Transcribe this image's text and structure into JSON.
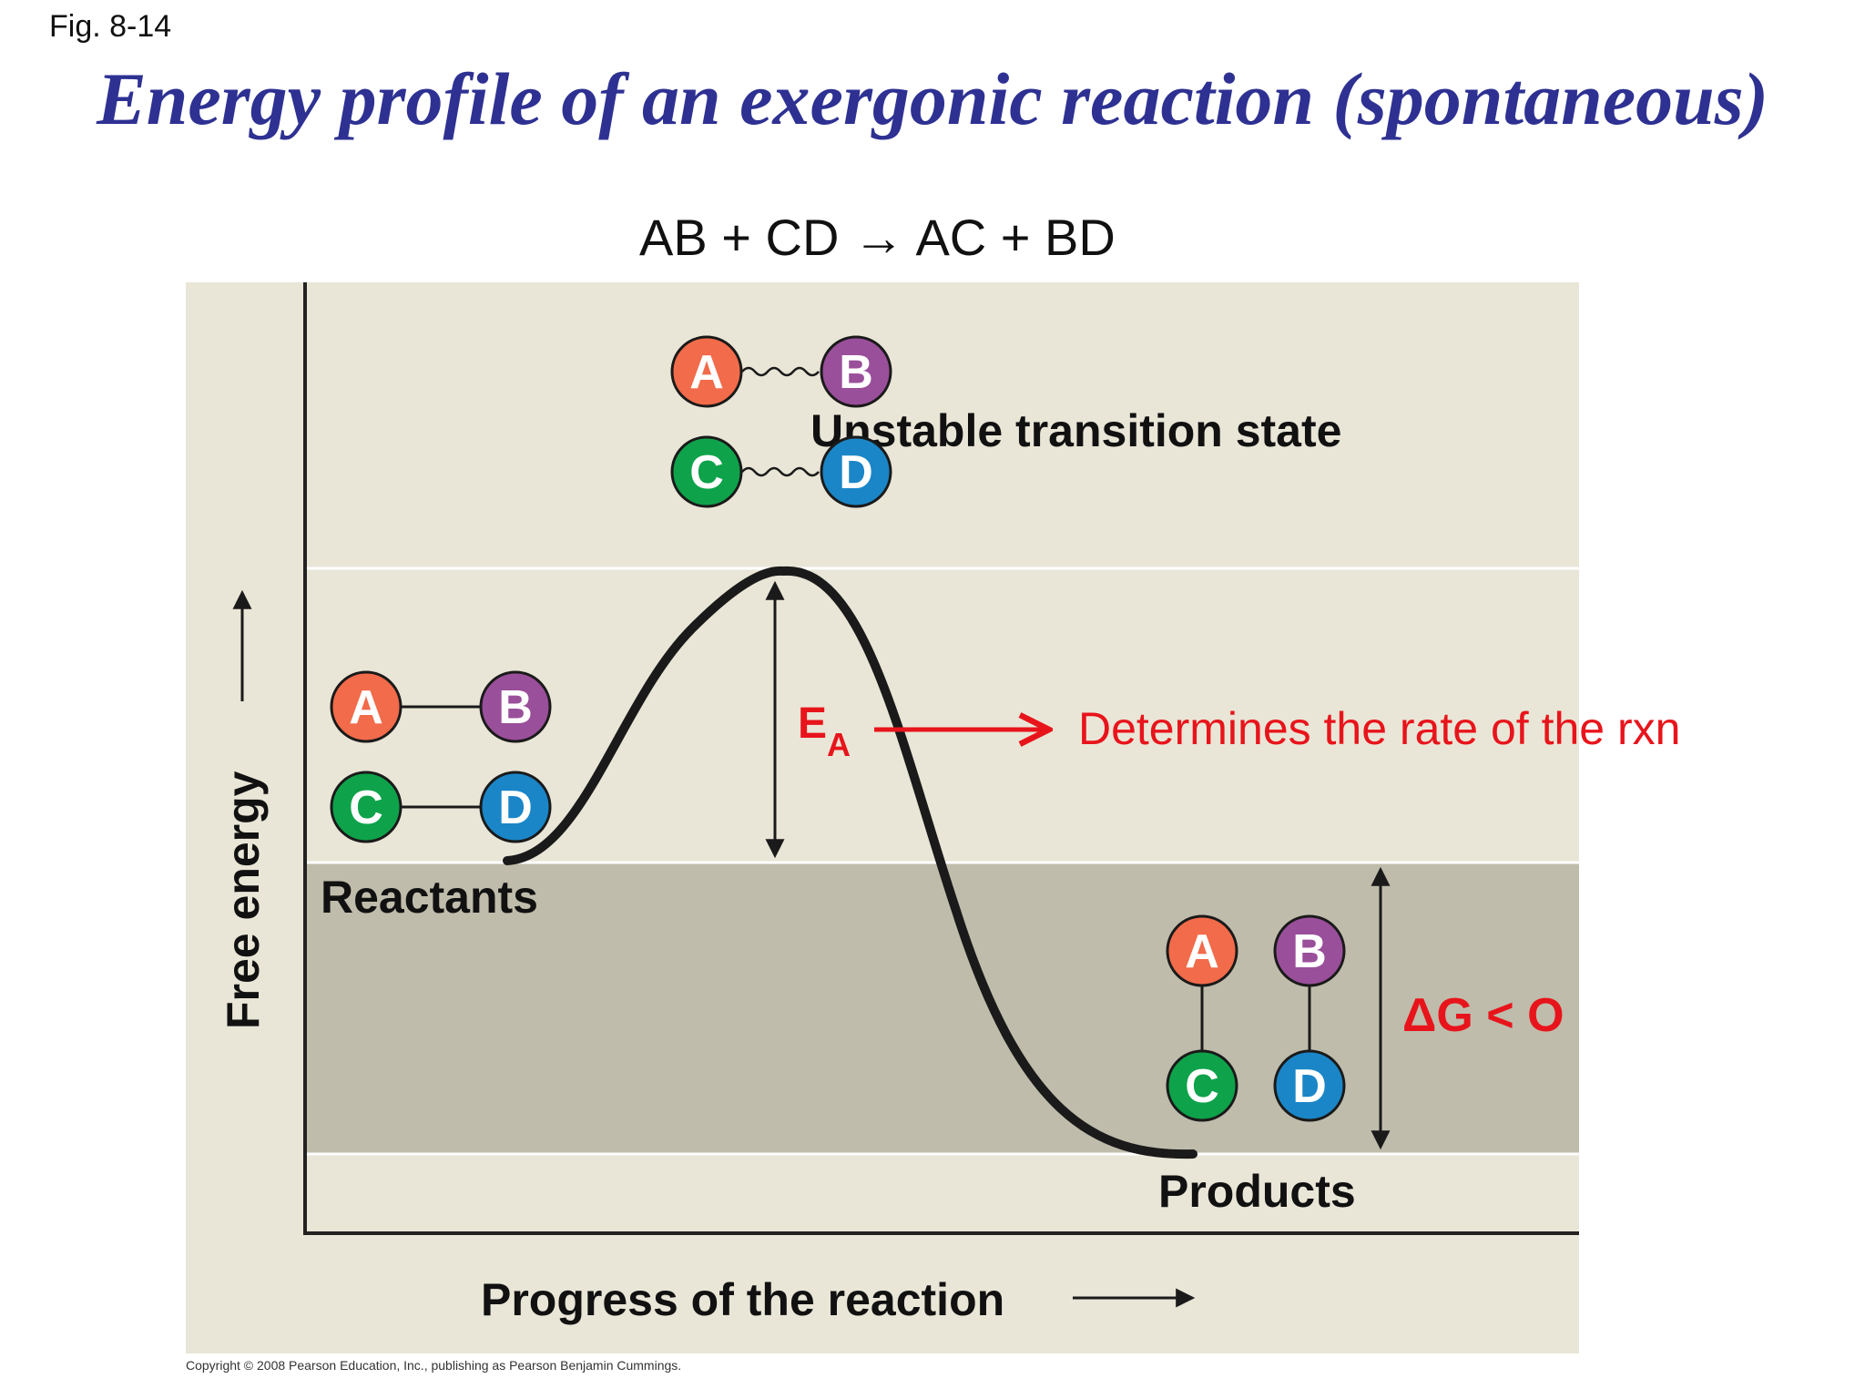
{
  "fig_label": "Fig. 8-14",
  "title": "Energy profile of an exergonic reaction (spontaneous)",
  "equation": {
    "left": "AB + CD",
    "arrow": "→",
    "right": "AC + BD"
  },
  "axes": {
    "y_label": "Free energy",
    "x_label": "Progress of the reaction"
  },
  "labels": {
    "transition_state": "Unstable transition state",
    "reactants": "Reactants",
    "products": "Products",
    "activation_energy": {
      "main": "E",
      "sub": "A"
    },
    "rate_note": "Determines the rate of the rxn",
    "delta_g": "ΔG < O"
  },
  "molecules": {
    "atoms": [
      "A",
      "B",
      "C",
      "D"
    ]
  },
  "colors": {
    "title": "#2e3192",
    "annotation_red": "#e8141b",
    "atom_A": "#f26b4a",
    "atom_B": "#9a4f9a",
    "atom_C": "#0ea24a",
    "atom_D": "#1a86c7",
    "panel_light": "#e9e6d7",
    "panel_dark": "#bfbcab"
  },
  "copyright": "Copyright © 2008 Pearson Education, Inc., publishing as Pearson Benjamin Cummings."
}
